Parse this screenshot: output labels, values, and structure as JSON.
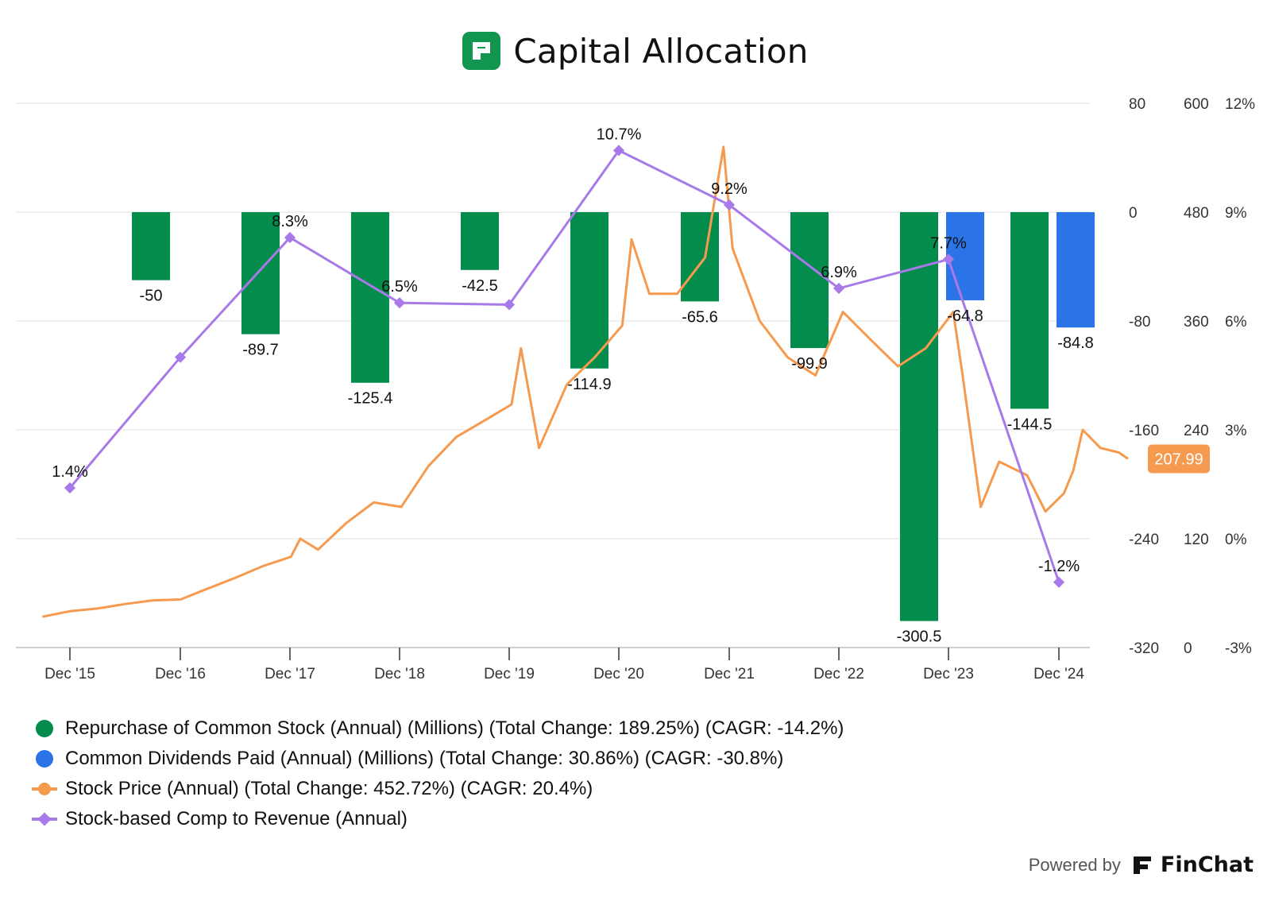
{
  "header": {
    "title": "Capital Allocation",
    "logo_icon": "finchat-logo-icon"
  },
  "footer": {
    "powered_by": "Powered by",
    "brand": "FinChat",
    "brand_icon": "finchat-brand-icon"
  },
  "colors": {
    "repurchase": "#038c4c",
    "dividends": "#2a74e8",
    "price": "#f59a4f",
    "sbc": "#a879e8",
    "grid": "#e7e7e7",
    "axis": "#cfcfcf"
  },
  "chart_data": {
    "type": "bar+line",
    "x_ticks": [
      "Dec '15",
      "Dec '16",
      "Dec '17",
      "Dec '18",
      "Dec '19",
      "Dec '20",
      "Dec '21",
      "Dec '22",
      "Dec '23",
      "Dec '24"
    ],
    "axes": {
      "left_millions": {
        "ticks": [
          "80",
          "0",
          "-80",
          "-160",
          "-240",
          "-320"
        ],
        "range": [
          -320,
          80
        ]
      },
      "price": {
        "ticks": [
          "600",
          "480",
          "360",
          "240",
          "120",
          "0"
        ],
        "range": [
          0,
          600
        ]
      },
      "percent": {
        "ticks": [
          "12%",
          "9%",
          "6%",
          "3%",
          "0%",
          "-3%"
        ],
        "range": [
          -3,
          12
        ]
      }
    },
    "series": [
      {
        "name": "Repurchase of Common Stock (Annual) (Millions) (Total Change: 189.25%) (CAGR: -14.2%)",
        "type": "bar",
        "axis": "left_millions",
        "points": [
          {
            "x": "Dec '16",
            "value": -50,
            "label": "-50"
          },
          {
            "x": "Dec '17",
            "value": -89.7,
            "label": "-89.7"
          },
          {
            "x": "Dec '18",
            "value": -125.4,
            "label": "-125.4"
          },
          {
            "x": "Dec '19",
            "value": -42.5,
            "label": "-42.5"
          },
          {
            "x": "Dec '20",
            "value": -114.9,
            "label": "-114.9"
          },
          {
            "x": "Dec '21",
            "value": -65.6,
            "label": "-65.6"
          },
          {
            "x": "Dec '22",
            "value": -99.9,
            "label": "-99.9"
          },
          {
            "x": "Dec '23",
            "value": -300.5,
            "label": "-300.5"
          },
          {
            "x": "Dec '24",
            "value": -144.5,
            "label": "-144.5"
          }
        ]
      },
      {
        "name": "Common Dividends Paid (Annual) (Millions) (Total Change: 30.86%) (CAGR: -30.8%)",
        "type": "bar",
        "axis": "left_millions",
        "points": [
          {
            "x": "Dec '23",
            "value": -64.8,
            "label": "-64.8"
          },
          {
            "x": "Dec '24",
            "value": -84.8,
            "label": "-84.8"
          }
        ]
      },
      {
        "name": "Stock Price (Annual) (Total Change: 452.72%) (CAGR: 20.4%)",
        "type": "line",
        "axis": "price",
        "last_value_label": "207.99",
        "points": [
          [
            "2015-09",
            34
          ],
          [
            "2015-12",
            40
          ],
          [
            "2016-03",
            43
          ],
          [
            "2016-06",
            48
          ],
          [
            "2016-09",
            52
          ],
          [
            "2016-12",
            53
          ],
          [
            "2017-03",
            65
          ],
          [
            "2017-06",
            77
          ],
          [
            "2017-09",
            90
          ],
          [
            "2017-12",
            100
          ],
          [
            "2018-01",
            120
          ],
          [
            "2018-03",
            108
          ],
          [
            "2018-06",
            137
          ],
          [
            "2018-09",
            160
          ],
          [
            "2018-12",
            155
          ],
          [
            "2019-03",
            200
          ],
          [
            "2019-06",
            232
          ],
          [
            "2019-09",
            250
          ],
          [
            "2019-12",
            268
          ],
          [
            "2020-01",
            330
          ],
          [
            "2020-03",
            220
          ],
          [
            "2020-06",
            290
          ],
          [
            "2020-09",
            320
          ],
          [
            "2020-12",
            355
          ],
          [
            "2021-01",
            450
          ],
          [
            "2021-03",
            390
          ],
          [
            "2021-06",
            390
          ],
          [
            "2021-09",
            430
          ],
          [
            "2021-10",
            490
          ],
          [
            "2021-11",
            552
          ],
          [
            "2021-12",
            440
          ],
          [
            "2022-03",
            360
          ],
          [
            "2022-06",
            320
          ],
          [
            "2022-09",
            300
          ],
          [
            "2022-12",
            370
          ],
          [
            "2023-03",
            340
          ],
          [
            "2023-06",
            310
          ],
          [
            "2023-09",
            330
          ],
          [
            "2023-12",
            370
          ],
          [
            "2024-01",
            300
          ],
          [
            "2024-03",
            155
          ],
          [
            "2024-05",
            205
          ],
          [
            "2024-08",
            190
          ],
          [
            "2024-10",
            150
          ],
          [
            "2024-12",
            170
          ],
          [
            "2025-01",
            195
          ],
          [
            "2025-02",
            240
          ],
          [
            "2025-04",
            220
          ],
          [
            "2025-06",
            215
          ],
          [
            "2025-07",
            208
          ]
        ]
      },
      {
        "name": "Stock-based Comp to Revenue (Annual)",
        "type": "line",
        "axis": "percent",
        "points": [
          {
            "x": "Dec '15",
            "value": 1.4,
            "label": "1.4%"
          },
          {
            "x": "Dec '16",
            "value": 5.0,
            "label": ""
          },
          {
            "x": "Dec '17",
            "value": 8.3,
            "label": "8.3%"
          },
          {
            "x": "Dec '18",
            "value": 6.5,
            "label": "6.5%"
          },
          {
            "x": "Dec '19",
            "value": 6.45,
            "label": ""
          },
          {
            "x": "Dec '20",
            "value": 10.7,
            "label": "10.7%"
          },
          {
            "x": "Dec '21",
            "value": 9.2,
            "label": "9.2%"
          },
          {
            "x": "Dec '22",
            "value": 6.9,
            "label": "6.9%"
          },
          {
            "x": "Dec '23",
            "value": 7.7,
            "label": "7.7%"
          },
          {
            "x": "Dec '24",
            "value": -1.2,
            "label": "-1.2%"
          }
        ]
      }
    ]
  }
}
